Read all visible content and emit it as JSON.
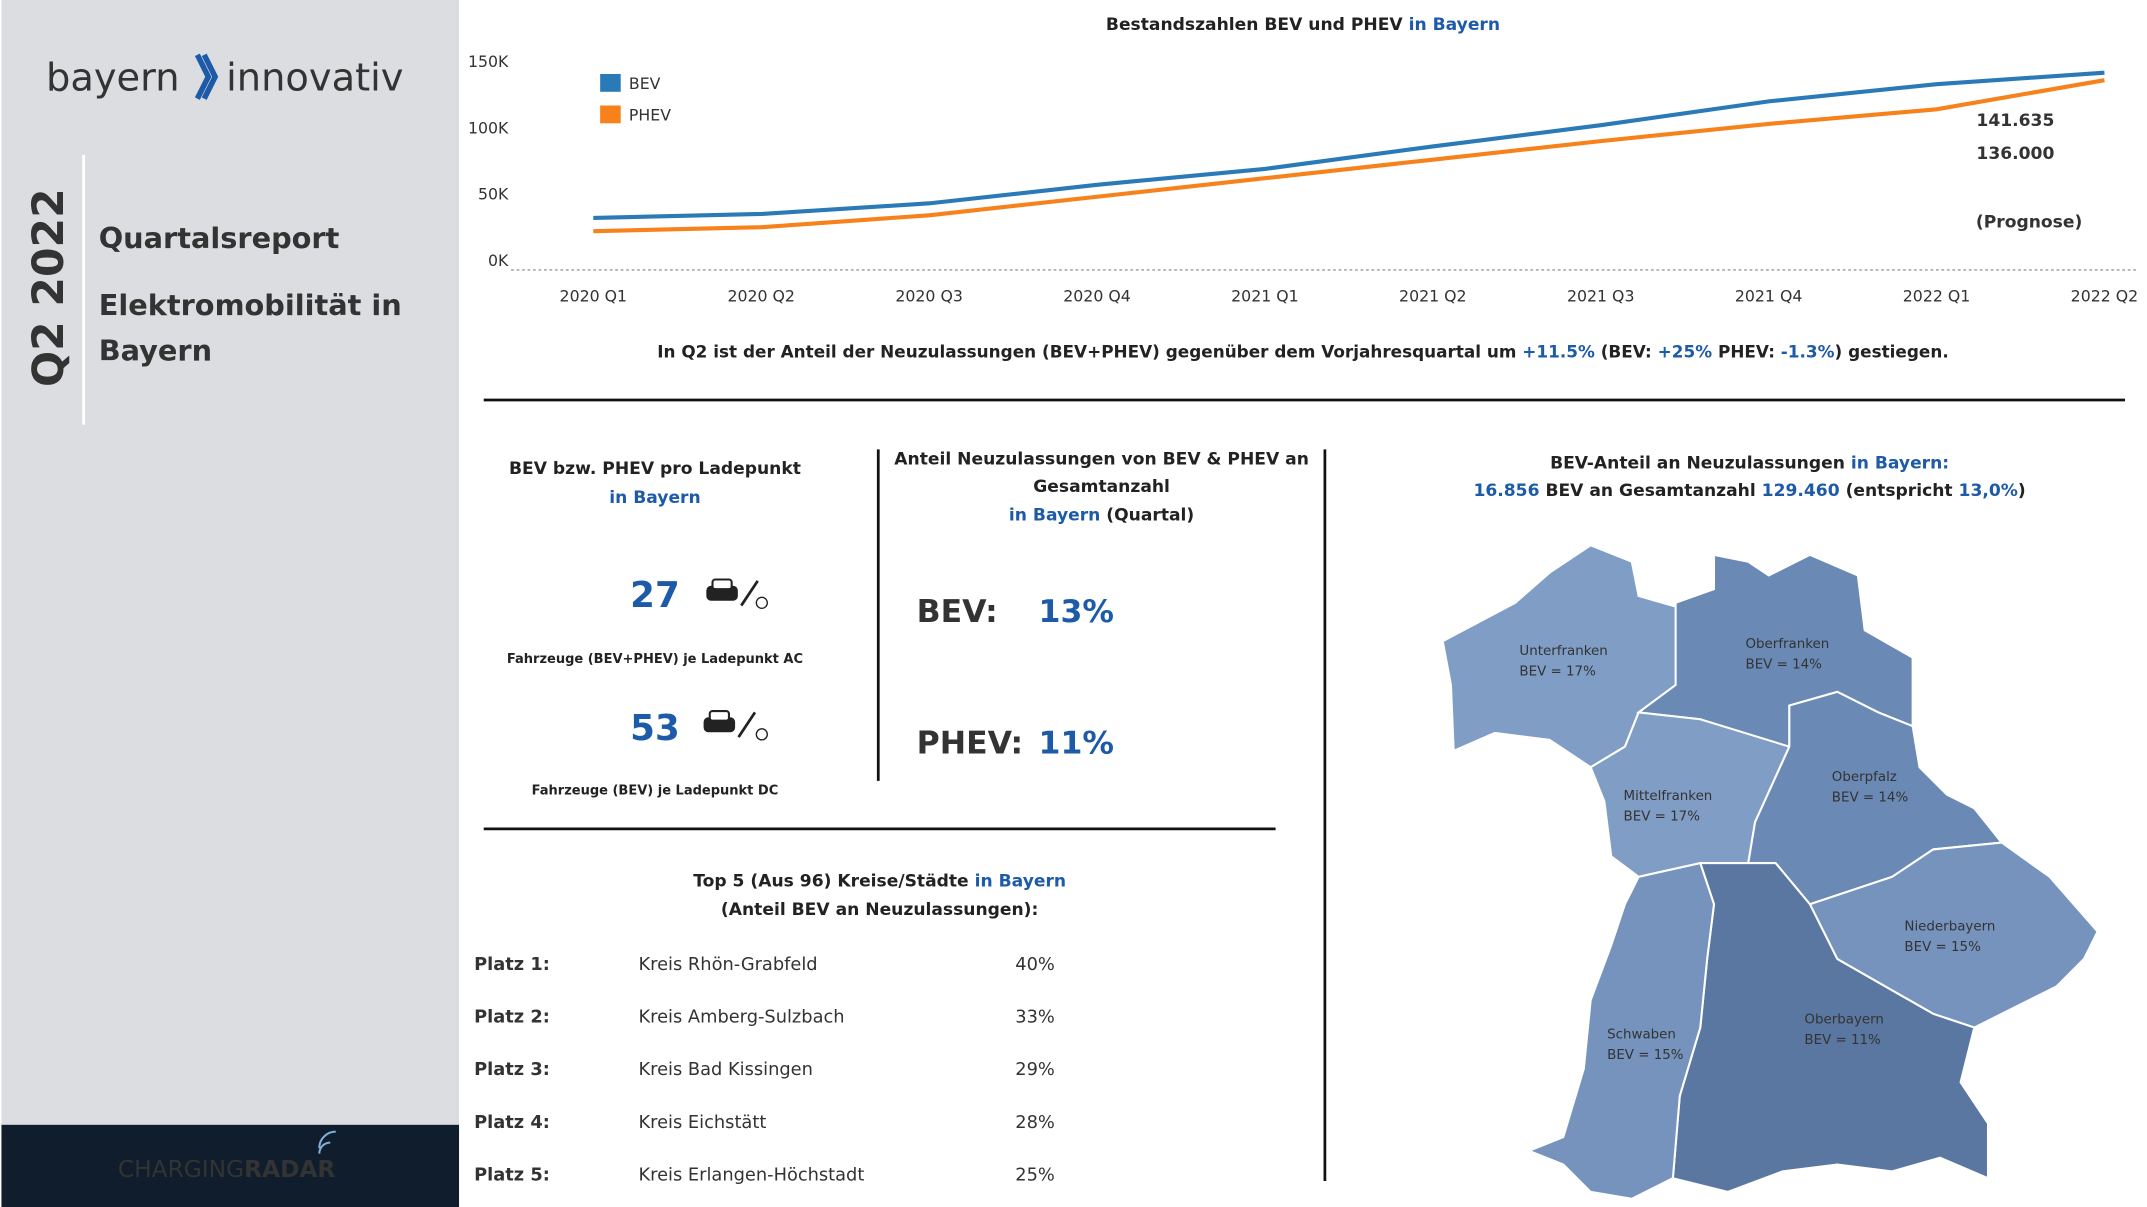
{
  "sidebar": {
    "logo_left": "bayern",
    "logo_right": "innovativ",
    "quarter": "Q2 2022",
    "report": "Quartalsreport",
    "subject_line1": "Elektromobilität in",
    "subject_line2": "Bayern",
    "footer_light": "CHARGING",
    "footer_bold": "RADAR"
  },
  "chart_data": {
    "type": "line",
    "title": "Bestandszahlen BEV und PHEV",
    "title_suffix": "in Bayern",
    "categories": [
      "2020 Q1",
      "2020 Q2",
      "2020 Q3",
      "2020 Q4",
      "2021 Q1",
      "2021 Q2",
      "2021 Q3",
      "2021 Q4",
      "2022 Q1",
      "2022 Q2"
    ],
    "series": [
      {
        "name": "BEV",
        "color": "#2a7ab8",
        "values": [
          32000,
          35000,
          43000,
          57000,
          69000,
          86000,
          102000,
          120000,
          133000,
          141635
        ],
        "value_labels": [
          null,
          null,
          null,
          null,
          null,
          null,
          null,
          null,
          null,
          "141.635"
        ]
      },
      {
        "name": "PHEV",
        "color": "#f7821b",
        "values": [
          22000,
          25000,
          34000,
          48000,
          62000,
          76000,
          90000,
          103000,
          114000,
          136000
        ],
        "value_labels": [
          null,
          null,
          null,
          null,
          null,
          null,
          null,
          null,
          null,
          "136.000"
        ]
      }
    ],
    "ylim": [
      0,
      150000
    ],
    "yticks": [
      {
        "value": 0,
        "label": "0K"
      },
      {
        "value": 50000,
        "label": "50K"
      },
      {
        "value": 100000,
        "label": "100K"
      },
      {
        "value": 150000,
        "label": "150K"
      }
    ],
    "annotation": "(Prognose)",
    "legend": "top-left"
  },
  "summary": {
    "text1": "In Q2 ist der Anteil der Neuzulassungen (BEV+PHEV) gegenüber dem Vorjahresquartal um ",
    "total": "+11.5%",
    "text2": "  (BEV: ",
    "bev": "+25%",
    "text3": " PHEV: ",
    "phev": "-1.3%",
    "text4": ") gestiegen."
  },
  "ladepunkt": {
    "title": "BEV bzw. PHEV pro Ladepunkt",
    "subtitle": "in Bayern",
    "items": [
      {
        "value": "27",
        "caption": "Fahrzeuge (BEV+PHEV) je Ladepunkt AC"
      },
      {
        "value": "53",
        "caption": "Fahrzeuge (BEV) je Ladepunkt DC"
      }
    ]
  },
  "anteil": {
    "title_line1": "Anteil Neuzulassungen von BEV & PHEV an",
    "title_line2": "Gesamtanzahl",
    "region": "in Bayern",
    "period": "(Quartal)",
    "items": [
      {
        "label": "BEV:",
        "value": "13%"
      },
      {
        "label": "PHEV:",
        "value": "11%"
      }
    ]
  },
  "map": {
    "title": "BEV-Anteil an Neuzulassungen",
    "title_suffix": "in Bayern:",
    "bev": "16.856",
    "text1": " BEV an Gesamtanzahl ",
    "total": "129.460",
    "text2": " (entspricht ",
    "share": "13,0%",
    "text3": ")",
    "regions": [
      {
        "name": "Unterfranken",
        "label": "BEV = 17%"
      },
      {
        "name": "Oberfranken",
        "label": "BEV = 14%"
      },
      {
        "name": "Mittelfranken",
        "label": "BEV = 17%"
      },
      {
        "name": "Oberpfalz",
        "label": "BEV = 14%"
      },
      {
        "name": "Niederbayern",
        "label": "BEV = 15%"
      },
      {
        "name": "Oberbayern",
        "label": "BEV = 11%"
      },
      {
        "name": "Schwaben",
        "label": "BEV = 15%"
      }
    ]
  },
  "top5": {
    "title": "Top 5 (Aus 96) Kreise/Städte",
    "title_suffix": "in Bayern",
    "subtitle": "(Anteil BEV an Neuzulassungen):",
    "rows": [
      [
        "Platz 1:",
        "Kreis Rhön-Grabfeld",
        "40%"
      ],
      [
        "Platz 2:",
        "Kreis Amberg-Sulzbach",
        "33%"
      ],
      [
        "Platz 3:",
        "Kreis Bad Kissingen",
        "29%"
      ],
      [
        "Platz 4:",
        "Kreis Eichstätt",
        "28%"
      ],
      [
        "Platz 5:",
        "Kreis Erlangen-Höchstadt",
        "25%"
      ]
    ]
  }
}
